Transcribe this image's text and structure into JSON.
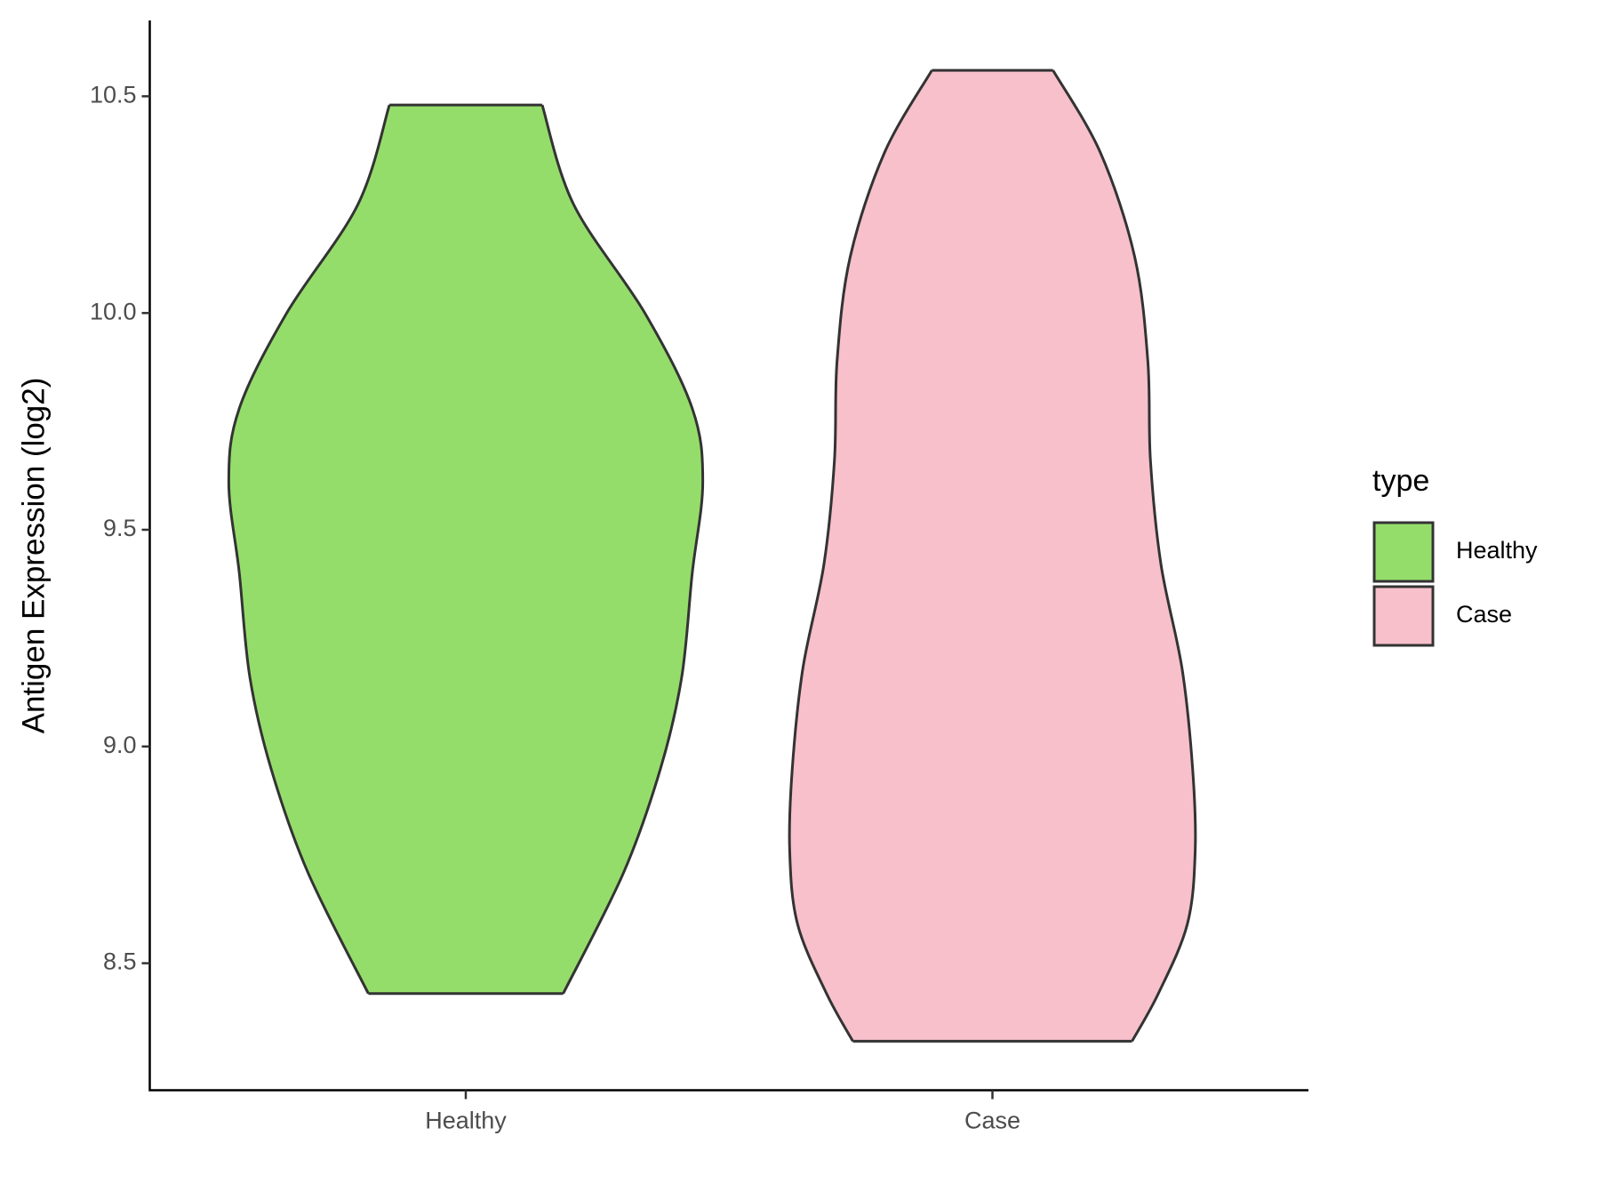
{
  "chart_data": {
    "type": "violin",
    "y_label": "Antigen Expression (log2)",
    "categories": [
      "Healthy",
      "Case"
    ],
    "legend_title": "type",
    "legend_position": "right",
    "ylim": [
      8.207,
      10.675
    ],
    "yticks": [
      {
        "value": 8.5,
        "label": "8.5"
      },
      {
        "value": 9,
        "label": "9.0"
      },
      {
        "value": 9.5,
        "label": "9.5"
      },
      {
        "value": 10,
        "label": "10.0"
      },
      {
        "value": 10.5,
        "label": "10.5"
      }
    ],
    "series": [
      {
        "name": "Healthy",
        "color": "#95dd6b",
        "y": [
          10.48,
          10.25,
          10.0,
          9.78,
          9.61,
          9.4,
          9.16,
          8.95,
          8.71,
          8.43
        ],
        "widths": [
          0.29,
          0.41,
          0.68,
          0.86,
          0.9,
          0.86,
          0.82,
          0.74,
          0.6,
          0.37
        ]
      },
      {
        "name": "Case",
        "color": "#f7c0cb",
        "y": [
          10.56,
          10.37,
          10.13,
          9.89,
          9.66,
          9.42,
          9.18,
          8.95,
          8.76,
          8.59,
          8.43,
          8.32
        ],
        "widths": [
          0.23,
          0.41,
          0.54,
          0.59,
          0.6,
          0.64,
          0.72,
          0.76,
          0.77,
          0.74,
          0.63,
          0.53
        ]
      }
    ]
  }
}
